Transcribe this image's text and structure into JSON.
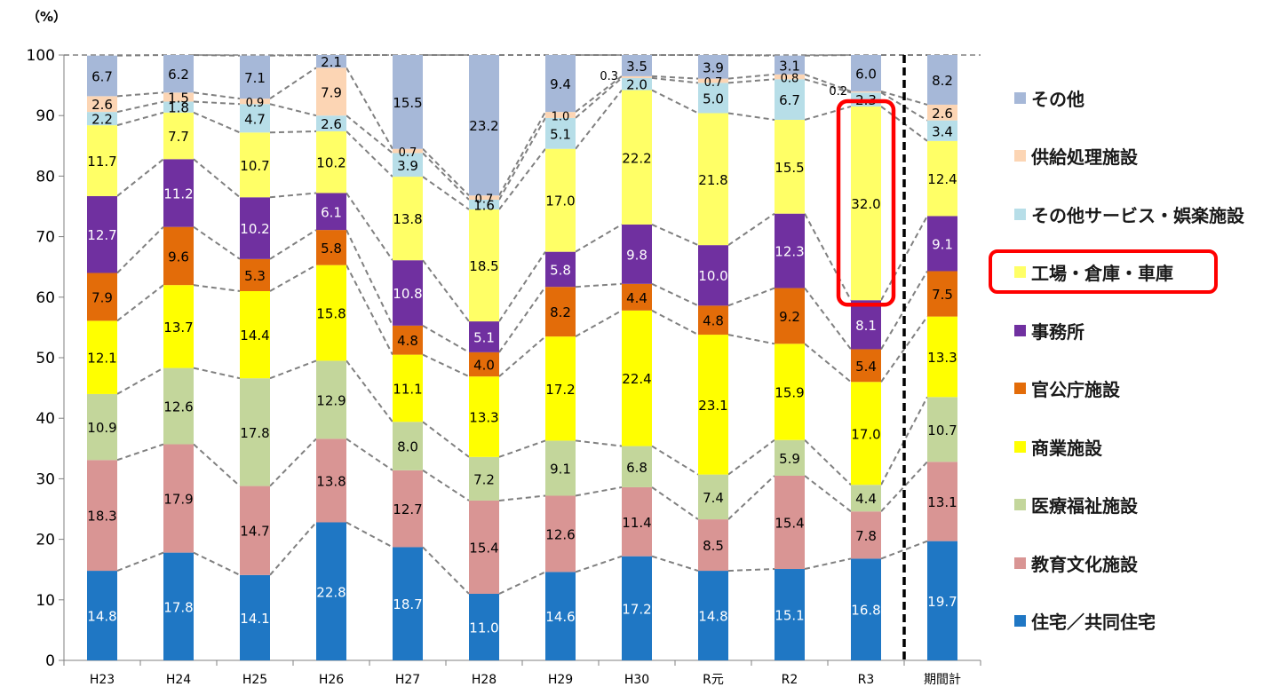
{
  "chart_data": {
    "type": "bar",
    "stacked": true,
    "unit_label": "（%）",
    "categories": [
      "H23",
      "H24",
      "H25",
      "H26",
      "H27",
      "H28",
      "H29",
      "H30",
      "R元",
      "R2",
      "R3",
      "期間計"
    ],
    "ylim": [
      0,
      100
    ],
    "yticks": [
      0,
      10,
      20,
      30,
      40,
      50,
      60,
      70,
      80,
      90,
      100
    ],
    "series": [
      {
        "name": "住宅／共同住宅",
        "color": "#1f77c4",
        "label_color": "#ffffff",
        "values": [
          14.8,
          17.8,
          14.1,
          22.8,
          18.7,
          11.0,
          14.6,
          17.2,
          14.8,
          15.1,
          16.8,
          19.7
        ]
      },
      {
        "name": "教育文化施設",
        "color": "#d99594",
        "label_color": "#000000",
        "values": [
          18.3,
          17.9,
          14.7,
          13.8,
          12.7,
          15.4,
          12.6,
          11.4,
          8.5,
          15.4,
          7.8,
          13.1
        ]
      },
      {
        "name": "医療福祉施設",
        "color": "#c3d69b",
        "label_color": "#000000",
        "values": [
          10.9,
          12.6,
          17.8,
          12.9,
          8.0,
          7.2,
          9.1,
          6.8,
          7.4,
          5.9,
          4.4,
          10.7
        ]
      },
      {
        "name": "商業施設",
        "color": "#ffff00",
        "label_color": "#000000",
        "values": [
          12.1,
          13.7,
          14.4,
          15.8,
          11.1,
          13.3,
          17.2,
          22.4,
          23.1,
          15.9,
          17.0,
          13.3
        ]
      },
      {
        "name": "官公庁施設",
        "color": "#e36c09",
        "label_color": "#000000",
        "values": [
          7.9,
          9.6,
          5.3,
          5.8,
          4.8,
          4.0,
          8.2,
          4.4,
          4.8,
          9.2,
          5.4,
          7.5
        ]
      },
      {
        "name": "事務所",
        "color": "#7030a0",
        "label_color": "#ffffff",
        "values": [
          12.7,
          11.2,
          10.2,
          6.1,
          10.8,
          5.1,
          5.8,
          9.8,
          10.0,
          12.3,
          8.1,
          9.1
        ]
      },
      {
        "name": "工場・倉庫・車庫",
        "color": "#ffff66",
        "label_color": "#000000",
        "values": [
          11.7,
          7.7,
          10.7,
          10.2,
          13.8,
          18.5,
          17.0,
          22.2,
          21.8,
          15.5,
          32.0,
          12.4
        ]
      },
      {
        "name": "その他サービス・娯楽施設",
        "color": "#b7dee8",
        "label_color": "#000000",
        "values": [
          2.2,
          1.8,
          4.7,
          2.6,
          3.9,
          1.6,
          5.1,
          2.0,
          5.0,
          6.7,
          2.3,
          3.4
        ]
      },
      {
        "name": "供給処理施設",
        "color": "#fcd5b4",
        "label_color": "#000000",
        "values": [
          2.6,
          1.5,
          0.9,
          7.9,
          0.7,
          0.7,
          1.0,
          0.3,
          0.7,
          0.8,
          0.2,
          2.6
        ]
      },
      {
        "name": "その他",
        "color": "#a6b8d8",
        "label_color": "#000000",
        "values": [
          6.7,
          6.2,
          7.1,
          2.1,
          15.5,
          23.2,
          9.4,
          3.5,
          3.9,
          3.1,
          6.0,
          8.2
        ]
      }
    ],
    "highlight": {
      "category": "R3",
      "series": "工場・倉庫・車庫",
      "color": "#ff0000"
    },
    "divider_before": "期間計",
    "connector_lines": "dashed-grey"
  }
}
